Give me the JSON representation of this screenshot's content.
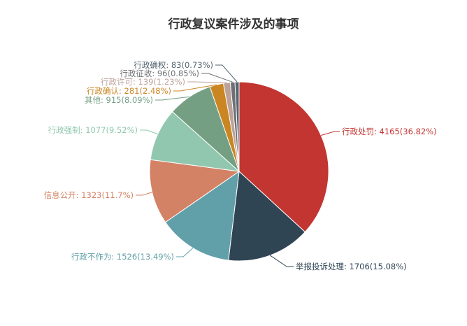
{
  "chart_data": {
    "type": "pie",
    "title": "行政复议案件涉及的事项",
    "series": [
      {
        "name": "",
        "slices": [
          {
            "name": "行政处罚",
            "value": 4165,
            "percent": "36.82%",
            "label": "行政处罚: 4165(36.82%)",
            "color": "#c23531"
          },
          {
            "name": "举报投诉处理",
            "value": 1706,
            "percent": "15.08%",
            "label": "举报投诉处理: 1706(15.08%)",
            "color": "#2f4554"
          },
          {
            "name": "行政不作为",
            "value": 1526,
            "percent": "13.49%",
            "label": "行政不作为: 1526(13.49%)",
            "color": "#61a0a8"
          },
          {
            "name": "信息公开",
            "value": 1323,
            "percent": "11.7%",
            "label": "信息公开: 1323(11.7%)",
            "color": "#d48265"
          },
          {
            "name": "行政强制",
            "value": 1077,
            "percent": "9.52%",
            "label": "行政强制: 1077(9.52%)",
            "color": "#91c7ae"
          },
          {
            "name": "其他",
            "value": 915,
            "percent": "8.09%",
            "label": "其他: 915(8.09%)",
            "color": "#749f83"
          },
          {
            "name": "行政确认",
            "value": 281,
            "percent": "2.48%",
            "label": "行政确认: 281(2.48%)",
            "color": "#ca8622"
          },
          {
            "name": "行政许可",
            "value": 139,
            "percent": "1.23%",
            "label": "行政许可: 139(1.23%)",
            "color": "#bda29a"
          },
          {
            "name": "行政征收",
            "value": 96,
            "percent": "0.85%",
            "label": "行政征收: 96(0.85%)",
            "color": "#6e7074"
          },
          {
            "name": "行政确权",
            "value": 83,
            "percent": "0.73%",
            "label": "行政确权: 83(0.73%)",
            "color": "#546570"
          }
        ]
      }
    ],
    "legend": "none",
    "start_angle": "top, clockwise"
  }
}
